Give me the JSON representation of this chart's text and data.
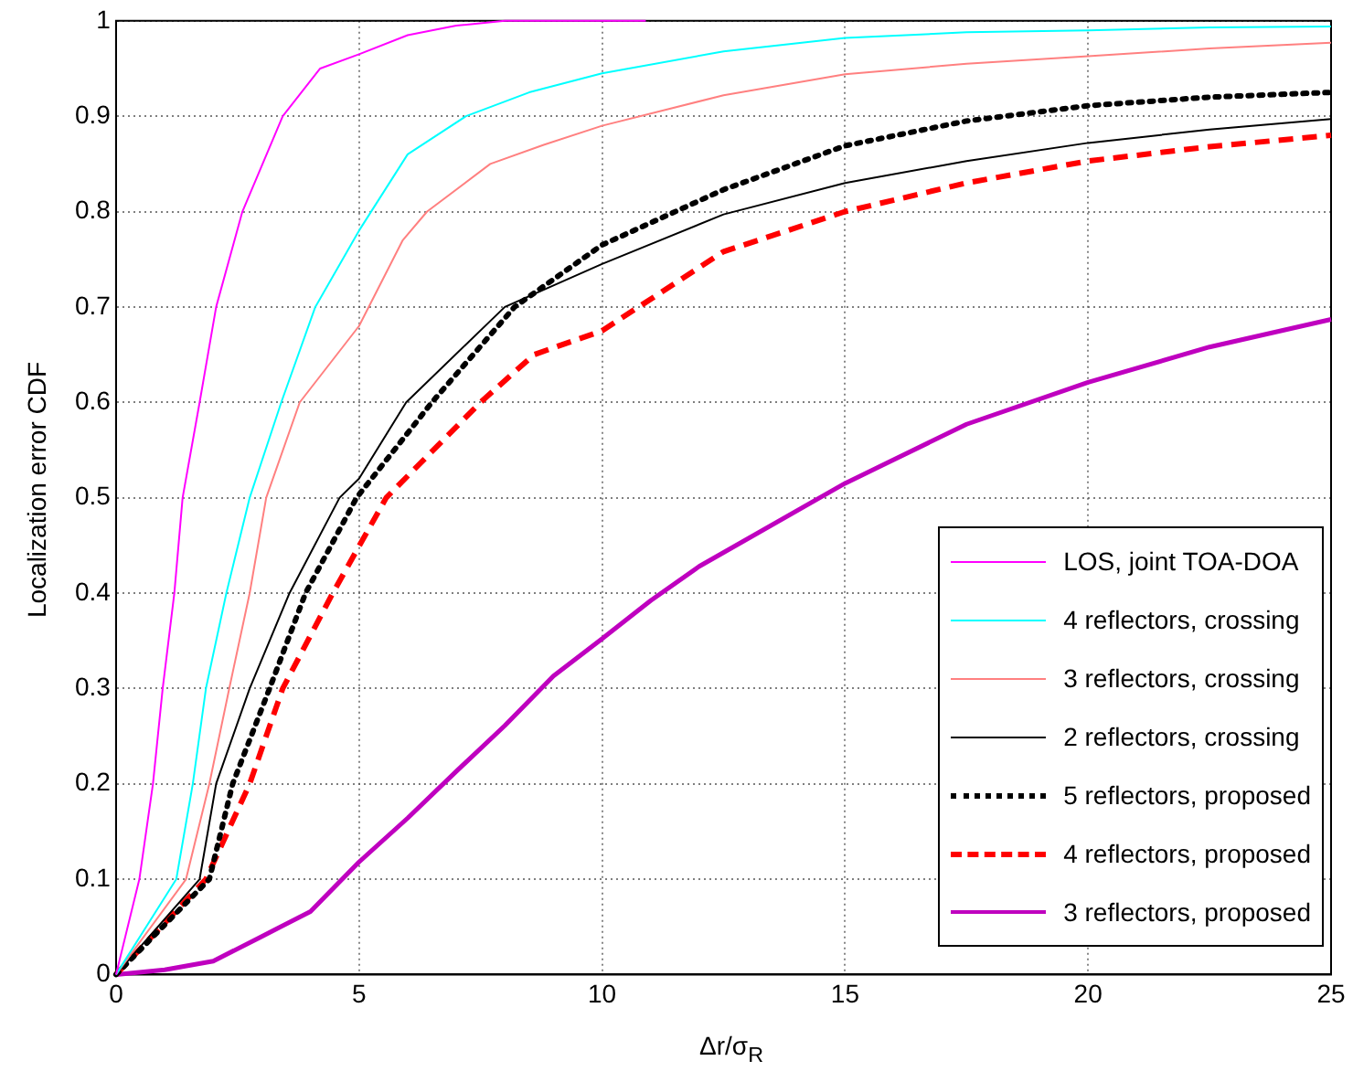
{
  "chart_data": {
    "type": "line",
    "xlabel": "Δr/σ$_{R}$",
    "ylabel": "Localization error CDF",
    "xlim": [
      0,
      25
    ],
    "xticks": [
      0,
      5,
      10,
      15,
      20,
      25
    ],
    "ylim": [
      0,
      1
    ],
    "yticks": [
      0,
      0.1,
      0.2,
      0.3,
      0.4,
      0.5,
      0.6,
      0.7,
      0.8,
      0.9,
      1
    ],
    "grid": true,
    "legend": "bottom right",
    "marker": "none",
    "series": [
      {
        "name": "LOS, joint TOA-DOA",
        "color": "#ff00ff",
        "line_style": "solid",
        "x": [
          0,
          0.48,
          0.76,
          0.96,
          1.2,
          1.37,
          1.72,
          2.06,
          2.6,
          3.43,
          4.2,
          5,
          6,
          7,
          8,
          9,
          10.9
        ],
        "values": [
          0,
          0.1,
          0.2,
          0.3,
          0.4,
          0.5,
          0.6,
          0.7,
          0.8,
          0.9,
          0.95,
          0.965,
          0.985,
          0.995,
          1,
          1,
          1
        ]
      },
      {
        "name": "4 reflectors, crossing",
        "color": "#00ffff",
        "line_style": "solid",
        "x": [
          0,
          1.24,
          1.58,
          1.85,
          2.27,
          2.75,
          3.4,
          4.1,
          5,
          6,
          7.2,
          8.5,
          10,
          12.5,
          15,
          17.5,
          20,
          22.5,
          25
        ],
        "values": [
          0,
          0.1,
          0.2,
          0.3,
          0.4,
          0.5,
          0.6,
          0.7,
          0.78,
          0.86,
          0.9,
          0.925,
          0.945,
          0.968,
          0.982,
          0.988,
          0.99,
          0.993,
          0.994
        ]
      },
      {
        "name": "3 reflectors, crossing",
        "color": "#ff8080",
        "line_style": "solid",
        "x": [
          0,
          1.44,
          1.92,
          2.33,
          2.75,
          3.09,
          3.78,
          5,
          5.9,
          6.4,
          7.7,
          8.8,
          10,
          12.5,
          15,
          17.5,
          20,
          22.5,
          25
        ],
        "values": [
          0,
          0.1,
          0.2,
          0.3,
          0.4,
          0.5,
          0.6,
          0.68,
          0.77,
          0.8,
          0.85,
          0.87,
          0.89,
          0.922,
          0.944,
          0.955,
          0.963,
          0.971,
          0.977
        ]
      },
      {
        "name": "2 reflectors, crossing",
        "color": "#000000",
        "line_style": "solid",
        "x": [
          0,
          1.72,
          2.06,
          2.75,
          3.57,
          4.6,
          5,
          5.97,
          8,
          10,
          12.5,
          15,
          17.5,
          20,
          22.5,
          25
        ],
        "values": [
          0,
          0.1,
          0.2,
          0.3,
          0.4,
          0.5,
          0.52,
          0.6,
          0.7,
          0.745,
          0.797,
          0.83,
          0.853,
          0.872,
          0.886,
          0.897
        ]
      },
      {
        "name": "5 reflectors, proposed",
        "color": "#000000",
        "line_style": "dotted",
        "x": [
          0,
          1.92,
          2.4,
          3.16,
          3.9,
          4.95,
          6.5,
          8.2,
          10,
          12.5,
          15,
          17.5,
          20,
          22.5,
          25
        ],
        "values": [
          0,
          0.1,
          0.2,
          0.3,
          0.4,
          0.5,
          0.6,
          0.7,
          0.765,
          0.823,
          0.869,
          0.895,
          0.911,
          0.92,
          0.925
        ]
      },
      {
        "name": "4 reflectors, proposed",
        "color": "#ff0000",
        "line_style": "dashed",
        "x": [
          0,
          1.85,
          2.75,
          3.43,
          4.46,
          5.56,
          7.5,
          8.6,
          10,
          12.5,
          15,
          17.5,
          20,
          22.5,
          25
        ],
        "values": [
          0,
          0.1,
          0.2,
          0.3,
          0.4,
          0.5,
          0.6,
          0.65,
          0.675,
          0.758,
          0.8,
          0.83,
          0.853,
          0.868,
          0.88
        ]
      },
      {
        "name": "3 reflectors, proposed",
        "color": "#bf00bf",
        "line_style": "solid",
        "x": [
          0,
          1,
          2,
          3,
          4,
          5,
          6,
          7,
          8,
          9,
          10,
          11,
          12,
          15,
          17.5,
          20,
          22.5,
          25
        ],
        "values": [
          0,
          0.005,
          0.014,
          0.04,
          0.066,
          0.118,
          0.164,
          0.213,
          0.261,
          0.313,
          0.352,
          0.392,
          0.428,
          0.515,
          0.577,
          0.621,
          0.658,
          0.687
        ]
      }
    ]
  }
}
